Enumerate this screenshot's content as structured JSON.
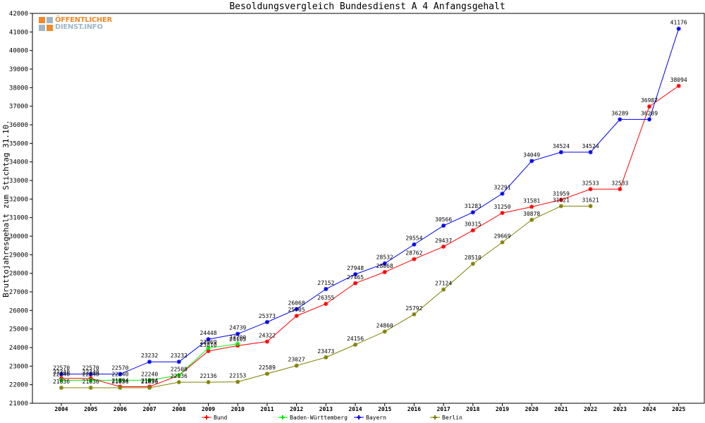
{
  "chart_data": {
    "type": "line",
    "title": "Besoldungsvergleich Bundesdienst A 4 Anfangsgehalt",
    "xlabel": "",
    "ylabel": "Bruttojahresgehalt zum Stichtag 31.10.",
    "ylim": [
      21000,
      42000
    ],
    "y_ticks": [
      21000,
      22000,
      23000,
      24000,
      25000,
      26000,
      27000,
      28000,
      29000,
      30000,
      31000,
      32000,
      33000,
      34000,
      35000,
      36000,
      37000,
      38000,
      39000,
      40000,
      41000,
      42000
    ],
    "categories": [
      "2004",
      "2005",
      "2006",
      "2007",
      "2008",
      "2009",
      "2010",
      "2011",
      "2012",
      "2013",
      "2014",
      "2015",
      "2016",
      "2017",
      "2018",
      "2019",
      "2020",
      "2021",
      "2022",
      "2023",
      "2024",
      "2025"
    ],
    "grid": false,
    "legend_position": "bottom",
    "series": [
      {
        "name": "Bund",
        "color": "#ff0000",
        "values": [
          22340,
          22340,
          21894,
          21894,
          22508,
          23810,
          24105,
          24322,
          25705,
          26355,
          27465,
          28068,
          28762,
          29437,
          30315,
          31250,
          31581,
          31959,
          32533,
          32533,
          36987,
          38094
        ],
        "labels": [
          "22340",
          "22340",
          "21894",
          "21894",
          "22508",
          "23810",
          "24105",
          "24322",
          "25705",
          "26355",
          "27465",
          "28068",
          "28762",
          "29437",
          "30315",
          "31250",
          "31581",
          "31959",
          "32533",
          "32533",
          "36987",
          "38094"
        ]
      },
      {
        "name": "Baden-Württemberg",
        "color": "#00ee00",
        "values": [
          22240,
          22240,
          22240,
          22240,
          22508,
          23969,
          24200,
          null,
          null,
          null,
          null,
          null,
          null,
          null,
          null,
          null,
          null,
          null,
          null,
          null,
          null,
          null
        ],
        "labels": [
          "22240",
          "22240",
          "22240",
          "22240",
          "",
          "23969",
          "24200",
          "",
          "",
          "",
          "",
          "",
          "",
          "",
          "",
          "",
          "",
          "",
          "",
          "",
          "",
          ""
        ]
      },
      {
        "name": "Bayern",
        "color": "#0000ee",
        "values": [
          22570,
          22570,
          22570,
          23232,
          23232,
          24448,
          24739,
          25373,
          26068,
          27152,
          27948,
          28532,
          29554,
          30566,
          31283,
          32291,
          34049,
          34524,
          34524,
          36289,
          36289,
          41176
        ],
        "labels": [
          "22570",
          "22570",
          "22570",
          "23232",
          "23232",
          "24448",
          "24739",
          "25373",
          "26068",
          "27152",
          "27948",
          "28532",
          "29554",
          "30566",
          "31283",
          "32291",
          "34049",
          "34524",
          "34524",
          "36289",
          "36289",
          "41176"
        ]
      },
      {
        "name": "Berlin",
        "color": "#808000",
        "values": [
          21836,
          21836,
          21836,
          21836,
          22136,
          22136,
          22153,
          22589,
          23027,
          23473,
          24156,
          24860,
          25792,
          27124,
          28510,
          29669,
          30878,
          31621,
          31621,
          null,
          null,
          null
        ],
        "labels": [
          "21836",
          "21836",
          "21836",
          "21836",
          "22136",
          "22136",
          "22153",
          "22589",
          "23027",
          "23473",
          "24156",
          "24860",
          "25792",
          "27124",
          "28510",
          "29669",
          "30878",
          "31621",
          "31621",
          "",
          "",
          ""
        ]
      }
    ]
  },
  "logo": {
    "line1": "ÖFFENTLICHER",
    "line2": "DIENST.INFO"
  }
}
